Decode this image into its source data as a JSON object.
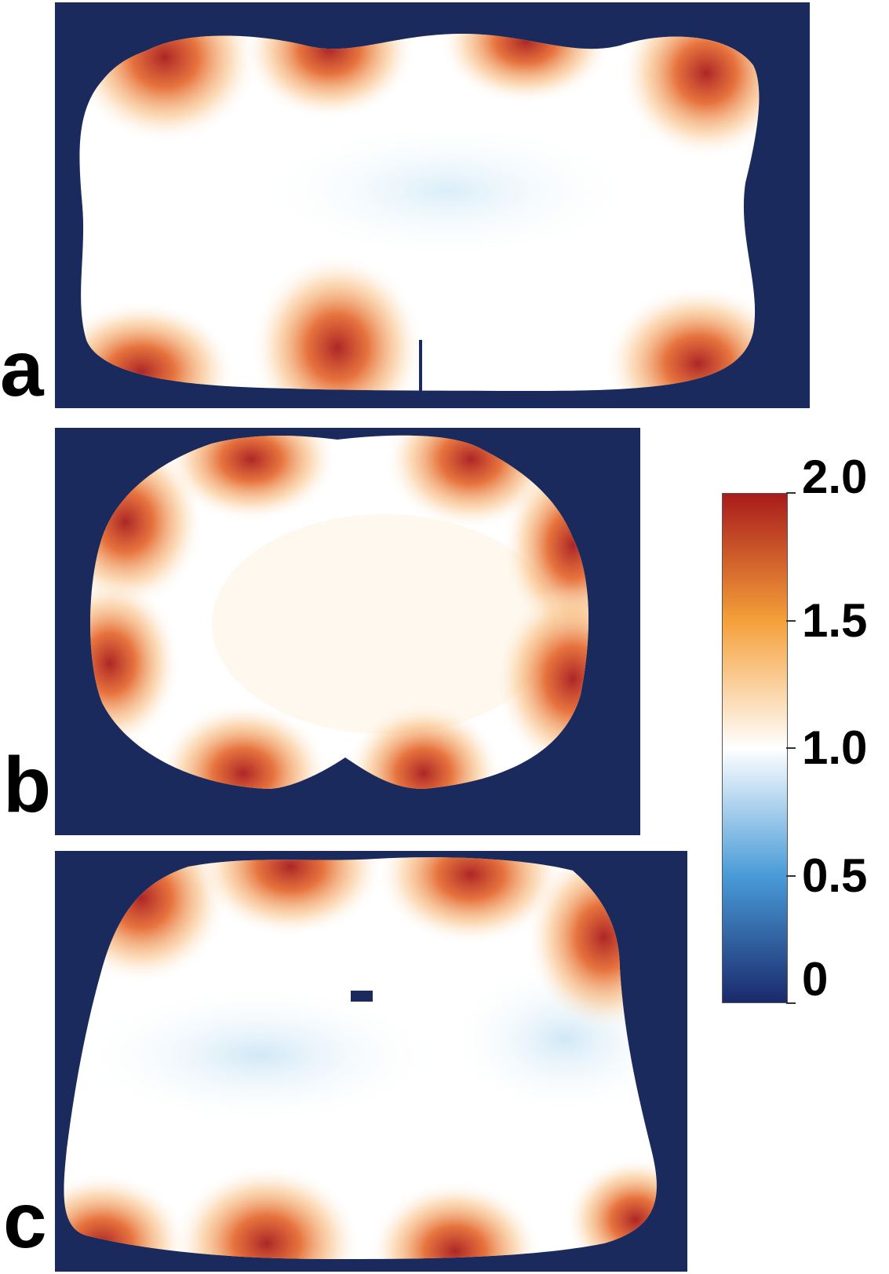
{
  "panels": [
    {
      "label": "a"
    },
    {
      "label": "b"
    },
    {
      "label": "c"
    }
  ],
  "colorbar": {
    "ticks": [
      "2.0",
      "1.5",
      "1.0",
      "0.5",
      "0"
    ],
    "tick_values": [
      2.0,
      1.5,
      1.0,
      0.5,
      0
    ],
    "range": [
      0,
      2.0
    ],
    "colors": {
      "low": "#1a2a6b",
      "mid_low": "#4a9bd8",
      "mid": "#ffffff",
      "mid_high": "#f5a03a",
      "high": "#a81b1b",
      "background": "#1a2a5c"
    }
  }
}
